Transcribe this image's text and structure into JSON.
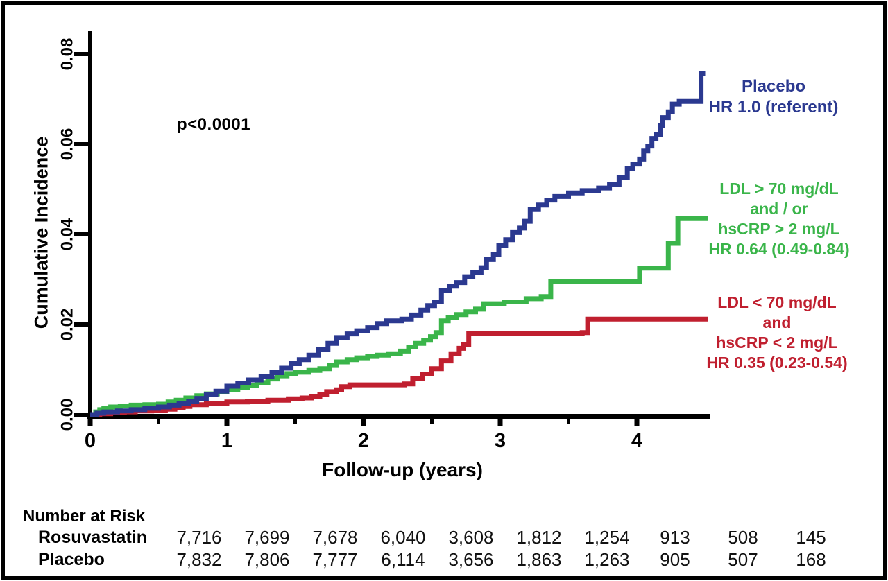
{
  "annotations": {
    "p_value": "p<0.0001"
  },
  "legend": {
    "placebo": {
      "lines": [
        "Placebo",
        "HR 1.0 (referent)"
      ]
    },
    "rosuva_high": {
      "lines": [
        "LDL > 70 mg/dL",
        "and / or",
        "hsCRP > 2 mg/L",
        "HR 0.64 (0.49-0.84)"
      ]
    },
    "rosuva_low": {
      "lines": [
        "LDL < 70 mg/dL",
        "and",
        "hsCRP < 2 mg/L",
        "HR 0.35 (0.23-0.54)"
      ]
    }
  },
  "risk_table": {
    "header": "Number at Risk",
    "rows": [
      {
        "label": "Rosuvastatin",
        "values": [
          "7,716",
          "7,699",
          "7,678",
          "6,040",
          "3,608",
          "1,812",
          "1,254",
          "913",
          "508",
          "145"
        ]
      },
      {
        "label": "Placebo",
        "values": [
          "7,832",
          "7,806",
          "7,777",
          "6,114",
          "3,656",
          "1,863",
          "1,263",
          "905",
          "507",
          "168"
        ]
      }
    ]
  },
  "chart_data": {
    "type": "line",
    "subtype": "step-cumulative-incidence",
    "title": "",
    "xlabel": "Follow-up (years)",
    "ylabel": "Cumulative Incidence",
    "xlim": [
      0,
      4.53
    ],
    "ylim": [
      0,
      0.08
    ],
    "grid": false,
    "legend_position": "right-outside",
    "x_axis": {
      "ticks": [
        {
          "v": 0,
          "label": "0"
        },
        {
          "v": 1,
          "label": "1"
        },
        {
          "v": 2,
          "label": "2"
        },
        {
          "v": 3,
          "label": "3"
        },
        {
          "v": 4,
          "label": "4"
        }
      ],
      "minor_ticks": [
        0.5,
        1.5,
        2.5,
        3.5
      ]
    },
    "y_axis": {
      "ticks": [
        {
          "v": 0,
          "label": "0.00"
        },
        {
          "v": 0.02,
          "label": "0.02"
        },
        {
          "v": 0.04,
          "label": "0.04"
        },
        {
          "v": 0.06,
          "label": "0.06"
        },
        {
          "v": 0.08,
          "label": "0.08"
        }
      ]
    },
    "series": [
      {
        "id": "rosuva-high",
        "name": "Rosuvastatin LDL > 70 mg/dL and/or hsCRP > 2 mg/L (HR 0.64, 0.49-0.84)",
        "color": "#3ab54a",
        "end_x": 4.52,
        "points": [
          [
            0,
            0
          ],
          [
            0.04,
            0.0006
          ],
          [
            0.07,
            0.0011
          ],
          [
            0.1,
            0.0014
          ],
          [
            0.15,
            0.0017
          ],
          [
            0.22,
            0.0019
          ],
          [
            0.3,
            0.0021
          ],
          [
            0.4,
            0.0022
          ],
          [
            0.5,
            0.0023
          ],
          [
            0.57,
            0.0028
          ],
          [
            0.63,
            0.0032
          ],
          [
            0.7,
            0.0037
          ],
          [
            0.78,
            0.0042
          ],
          [
            0.85,
            0.0046
          ],
          [
            0.93,
            0.005
          ],
          [
            1,
            0.0055
          ],
          [
            1.08,
            0.006
          ],
          [
            1.15,
            0.0064
          ],
          [
            1.22,
            0.0071
          ],
          [
            1.3,
            0.0079
          ],
          [
            1.37,
            0.0086
          ],
          [
            1.44,
            0.0091
          ],
          [
            1.5,
            0.0094
          ],
          [
            1.6,
            0.0098
          ],
          [
            1.68,
            0.0102
          ],
          [
            1.75,
            0.0109
          ],
          [
            1.8,
            0.0117
          ],
          [
            1.88,
            0.0122
          ],
          [
            1.95,
            0.0126
          ],
          [
            2.03,
            0.0129
          ],
          [
            2.1,
            0.0132
          ],
          [
            2.18,
            0.0135
          ],
          [
            2.27,
            0.0141
          ],
          [
            2.33,
            0.015
          ],
          [
            2.38,
            0.0158
          ],
          [
            2.44,
            0.0165
          ],
          [
            2.49,
            0.0173
          ],
          [
            2.53,
            0.0182
          ],
          [
            2.57,
            0.0208
          ],
          [
            2.62,
            0.0215
          ],
          [
            2.68,
            0.0222
          ],
          [
            2.75,
            0.0228
          ],
          [
            2.82,
            0.0234
          ],
          [
            2.88,
            0.0246
          ],
          [
            3.03,
            0.025
          ],
          [
            3.19,
            0.0257
          ],
          [
            3.3,
            0.0262
          ],
          [
            3.37,
            0.0295
          ],
          [
            4.02,
            0.0325
          ],
          [
            4.23,
            0.038
          ],
          [
            4.3,
            0.0435
          ]
        ]
      },
      {
        "id": "rosuva-low",
        "name": "Rosuvastatin LDL < 70 mg/dL and hsCRP < 2 mg/L (HR 0.35, 0.23-0.54)",
        "color": "#c01f2f",
        "end_x": 4.52,
        "points": [
          [
            0,
            0
          ],
          [
            0.07,
            0.0002
          ],
          [
            0.15,
            0.0004
          ],
          [
            0.25,
            0.0006
          ],
          [
            0.33,
            0.0008
          ],
          [
            0.45,
            0.0009
          ],
          [
            0.55,
            0.0012
          ],
          [
            0.62,
            0.0015
          ],
          [
            0.68,
            0.0018
          ],
          [
            0.73,
            0.0022
          ],
          [
            0.85,
            0.0025
          ],
          [
            1,
            0.0028
          ],
          [
            1.15,
            0.003
          ],
          [
            1.3,
            0.0032
          ],
          [
            1.45,
            0.0035
          ],
          [
            1.55,
            0.0037
          ],
          [
            1.62,
            0.004
          ],
          [
            1.68,
            0.0045
          ],
          [
            1.73,
            0.0051
          ],
          [
            1.8,
            0.0055
          ],
          [
            1.84,
            0.0062
          ],
          [
            1.9,
            0.0066
          ],
          [
            2.3,
            0.0068
          ],
          [
            2.36,
            0.008
          ],
          [
            2.43,
            0.009
          ],
          [
            2.5,
            0.0102
          ],
          [
            2.57,
            0.0119
          ],
          [
            2.64,
            0.0135
          ],
          [
            2.7,
            0.0147
          ],
          [
            2.73,
            0.0155
          ],
          [
            2.77,
            0.018
          ],
          [
            3.6,
            0.0182
          ],
          [
            3.64,
            0.0212
          ]
        ]
      },
      {
        "id": "placebo",
        "name": "Placebo (HR 1.0, referent)",
        "color": "#2b3990",
        "end_x": 4.5,
        "points": [
          [
            0,
            0
          ],
          [
            0.05,
            0.0003
          ],
          [
            0.1,
            0.0006
          ],
          [
            0.2,
            0.0008
          ],
          [
            0.3,
            0.0011
          ],
          [
            0.4,
            0.0014
          ],
          [
            0.5,
            0.0017
          ],
          [
            0.58,
            0.0021
          ],
          [
            0.65,
            0.0025
          ],
          [
            0.72,
            0.003
          ],
          [
            0.78,
            0.0036
          ],
          [
            0.85,
            0.0044
          ],
          [
            0.92,
            0.0052
          ],
          [
            1,
            0.0063
          ],
          [
            1.08,
            0.007
          ],
          [
            1.16,
            0.0077
          ],
          [
            1.25,
            0.0085
          ],
          [
            1.33,
            0.0093
          ],
          [
            1.4,
            0.0103
          ],
          [
            1.47,
            0.0113
          ],
          [
            1.53,
            0.0122
          ],
          [
            1.6,
            0.0132
          ],
          [
            1.67,
            0.0145
          ],
          [
            1.74,
            0.0158
          ],
          [
            1.8,
            0.0171
          ],
          [
            1.88,
            0.0179
          ],
          [
            1.95,
            0.0186
          ],
          [
            2.03,
            0.0193
          ],
          [
            2.1,
            0.0202
          ],
          [
            2.17,
            0.0208
          ],
          [
            2.28,
            0.0212
          ],
          [
            2.35,
            0.0221
          ],
          [
            2.42,
            0.0232
          ],
          [
            2.47,
            0.0242
          ],
          [
            2.52,
            0.025
          ],
          [
            2.57,
            0.0276
          ],
          [
            2.63,
            0.0285
          ],
          [
            2.68,
            0.0293
          ],
          [
            2.74,
            0.0306
          ],
          [
            2.8,
            0.0315
          ],
          [
            2.86,
            0.0326
          ],
          [
            2.9,
            0.0344
          ],
          [
            2.95,
            0.0356
          ],
          [
            2.99,
            0.0375
          ],
          [
            3.04,
            0.0388
          ],
          [
            3.09,
            0.0404
          ],
          [
            3.14,
            0.0414
          ],
          [
            3.18,
            0.0429
          ],
          [
            3.22,
            0.0455
          ],
          [
            3.28,
            0.0465
          ],
          [
            3.34,
            0.0476
          ],
          [
            3.4,
            0.0484
          ],
          [
            3.5,
            0.0492
          ],
          [
            3.6,
            0.0497
          ],
          [
            3.72,
            0.0503
          ],
          [
            3.8,
            0.051
          ],
          [
            3.87,
            0.0527
          ],
          [
            3.93,
            0.0546
          ],
          [
            3.97,
            0.0556
          ],
          [
            4.02,
            0.0567
          ],
          [
            4.05,
            0.0585
          ],
          [
            4.08,
            0.0596
          ],
          [
            4.11,
            0.0613
          ],
          [
            4.14,
            0.0622
          ],
          [
            4.17,
            0.0641
          ],
          [
            4.19,
            0.0659
          ],
          [
            4.23,
            0.0672
          ],
          [
            4.26,
            0.0689
          ],
          [
            4.31,
            0.0695
          ],
          [
            4.47,
            0.0757
          ]
        ]
      }
    ]
  }
}
